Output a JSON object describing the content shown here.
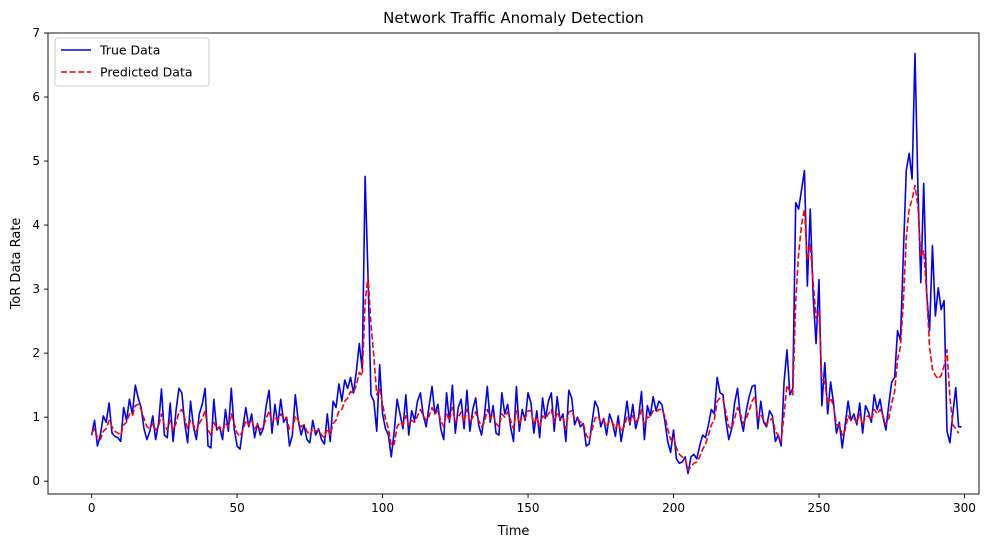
{
  "chart_data": {
    "type": "line",
    "title": "Network Traffic Anomaly Detection",
    "xlabel": "Time",
    "ylabel": "ToR Data Rate",
    "xlim": [
      -15,
      305
    ],
    "ylim": [
      -0.2,
      7
    ],
    "xticks": [
      0,
      50,
      100,
      150,
      200,
      250,
      300
    ],
    "yticks": [
      0,
      1,
      2,
      3,
      4,
      5,
      6,
      7
    ],
    "grid": false,
    "legend_position": "top-left",
    "series": [
      {
        "name": "True Data",
        "color": "#0000ff",
        "style": "solid",
        "values": [
          0.72,
          0.95,
          0.55,
          0.72,
          1.02,
          0.92,
          1.22,
          0.75,
          0.7,
          0.68,
          0.62,
          1.15,
          0.95,
          1.28,
          1.05,
          1.5,
          1.3,
          1.15,
          0.82,
          0.65,
          0.78,
          1.02,
          0.65,
          0.9,
          1.44,
          0.72,
          0.68,
          1.22,
          0.62,
          1.1,
          1.45,
          1.38,
          0.9,
          0.6,
          1.25,
          0.85,
          0.65,
          1.05,
          1.2,
          1.45,
          0.55,
          0.52,
          1.28,
          0.8,
          0.85,
          0.65,
          1.12,
          0.78,
          1.45,
          0.82,
          0.55,
          0.5,
          0.85,
          1.15,
          0.85,
          1.05,
          0.68,
          0.9,
          0.72,
          0.82,
          1.18,
          1.42,
          0.75,
          1.2,
          0.88,
          1.28,
          0.92,
          1.0,
          0.55,
          0.72,
          1.35,
          0.95,
          0.72,
          0.88,
          0.65,
          0.6,
          0.95,
          0.72,
          0.82,
          0.65,
          0.58,
          1.05,
          0.62,
          1.25,
          1.15,
          1.52,
          1.25,
          1.58,
          1.45,
          1.62,
          1.38,
          1.72,
          2.15,
          1.75,
          4.76,
          3.2,
          1.35,
          1.25,
          0.78,
          1.82,
          1.05,
          0.82,
          0.72,
          0.38,
          0.78,
          1.28,
          1.05,
          0.82,
          1.35,
          0.72,
          1.1,
          0.95,
          1.25,
          1.38,
          1.02,
          0.85,
          1.18,
          1.48,
          1.05,
          1.2,
          0.82,
          0.65,
          1.38,
          0.92,
          1.5,
          0.75,
          1.15,
          1.28,
          0.82,
          1.42,
          0.78,
          1.12,
          1.3,
          0.88,
          0.72,
          1.02,
          1.48,
          0.92,
          1.18,
          0.75,
          0.72,
          1.38,
          1.05,
          1.2,
          0.85,
          0.62,
          1.48,
          0.78,
          1.12,
          0.95,
          1.38,
          1.22,
          0.75,
          1.1,
          0.68,
          1.3,
          0.98,
          1.25,
          1.38,
          0.78,
          1.32,
          0.95,
          1.05,
          0.62,
          1.42,
          1.3,
          0.88,
          1.0,
          0.85,
          0.9,
          0.55,
          0.58,
          0.92,
          1.25,
          1.15,
          0.85,
          0.98,
          0.72,
          1.05,
          0.92,
          0.7,
          1.02,
          0.62,
          0.9,
          1.25,
          0.88,
          1.2,
          0.82,
          1.0,
          1.4,
          0.65,
          1.18,
          1.02,
          1.32,
          1.1,
          1.25,
          1.2,
          0.95,
          0.62,
          0.45,
          0.8,
          0.35,
          0.28,
          0.3,
          0.38,
          0.12,
          0.38,
          0.42,
          0.35,
          0.55,
          0.72,
          0.68,
          0.88,
          1.12,
          1.05,
          1.62,
          1.38,
          1.35,
          0.95,
          0.65,
          0.82,
          1.22,
          1.45,
          1.0,
          0.78,
          1.1,
          1.32,
          1.48,
          1.5,
          0.82,
          1.25,
          0.92,
          0.85,
          1.1,
          1.02,
          0.62,
          0.72,
          0.55,
          1.55,
          2.05,
          1.35,
          1.45,
          4.35,
          4.25,
          4.55,
          4.85,
          3.05,
          4.25,
          2.88,
          2.15,
          3.15,
          1.18,
          1.85,
          1.05,
          1.55,
          1.22,
          0.75,
          0.92,
          0.52,
          0.88,
          1.25,
          0.95,
          1.05,
          0.88,
          1.22,
          0.75,
          1.18,
          1.08,
          0.92,
          1.35,
          1.12,
          1.28,
          1.0,
          0.8,
          1.2,
          1.55,
          1.62,
          2.35,
          2.2,
          3.55,
          4.85,
          5.12,
          4.72,
          6.68,
          4.6,
          3.1,
          4.65,
          2.95,
          2.35,
          3.68,
          2.58,
          3.02,
          2.68,
          2.82,
          0.78,
          0.6,
          1.05,
          1.46,
          0.85,
          0.85
        ]
      },
      {
        "name": "Predicted Data",
        "color": "#ff0000",
        "style": "dashed",
        "values": [
          0.75,
          0.82,
          0.68,
          0.65,
          0.78,
          0.82,
          0.95,
          0.85,
          0.78,
          0.75,
          0.72,
          0.88,
          0.92,
          1.05,
          1.02,
          1.18,
          1.2,
          1.12,
          0.98,
          0.85,
          0.82,
          0.9,
          0.8,
          0.85,
          1.05,
          0.88,
          0.8,
          0.95,
          0.8,
          0.9,
          1.08,
          1.12,
          0.98,
          0.82,
          0.95,
          0.88,
          0.78,
          0.9,
          0.98,
          1.1,
          0.8,
          0.72,
          0.92,
          0.82,
          0.85,
          0.78,
          0.9,
          0.85,
          1.05,
          0.9,
          0.75,
          0.7,
          0.8,
          0.95,
          0.88,
          0.95,
          0.82,
          0.88,
          0.8,
          0.85,
          0.98,
          1.1,
          0.92,
          1.0,
          0.95,
          1.05,
          0.98,
          1.0,
          0.8,
          0.8,
          1.02,
          0.95,
          0.85,
          0.88,
          0.78,
          0.72,
          0.82,
          0.78,
          0.8,
          0.72,
          0.68,
          0.82,
          0.72,
          0.9,
          0.95,
          1.1,
          1.12,
          1.25,
          1.3,
          1.4,
          1.38,
          1.5,
          1.7,
          1.65,
          2.8,
          3.2,
          2.45,
          1.95,
          1.35,
          1.45,
          1.2,
          0.98,
          0.82,
          0.55,
          0.58,
          0.85,
          0.92,
          0.88,
          1.02,
          0.88,
          0.95,
          0.92,
          1.02,
          1.12,
          1.02,
          0.95,
          1.02,
          1.15,
          1.05,
          1.1,
          0.95,
          0.85,
          1.05,
          0.95,
          1.15,
          0.92,
          1.0,
          1.08,
          0.92,
          1.12,
          0.92,
          1.0,
          1.08,
          0.95,
          0.85,
          0.92,
          1.12,
          0.98,
          1.05,
          0.9,
          0.85,
          1.05,
          1.0,
          1.08,
          0.95,
          0.82,
          1.1,
          0.9,
          1.0,
          0.98,
          1.1,
          1.1,
          0.9,
          1.0,
          0.85,
          1.02,
          0.98,
          1.05,
          1.12,
          0.92,
          1.08,
          0.98,
          1.0,
          0.82,
          1.08,
          1.1,
          0.98,
          0.98,
          0.92,
          0.9,
          0.72,
          0.65,
          0.8,
          0.98,
          1.02,
          0.92,
          0.95,
          0.85,
          0.95,
          0.92,
          0.82,
          0.92,
          0.78,
          0.85,
          1.0,
          0.92,
          1.02,
          0.92,
          0.98,
          1.12,
          0.88,
          1.0,
          1.0,
          1.1,
          1.08,
          1.12,
          1.12,
          1.02,
          0.82,
          0.65,
          0.7,
          0.52,
          0.42,
          0.38,
          0.35,
          0.18,
          0.22,
          0.28,
          0.3,
          0.38,
          0.5,
          0.58,
          0.72,
          0.88,
          0.95,
          1.25,
          1.3,
          1.28,
          1.08,
          0.85,
          0.82,
          0.98,
          1.15,
          1.05,
          0.9,
          0.98,
          1.1,
          1.25,
          1.32,
          0.98,
          1.05,
          0.95,
          0.88,
          0.95,
          0.98,
          0.78,
          0.72,
          0.62,
          1.05,
          1.5,
          1.4,
          1.35,
          2.8,
          3.55,
          4.0,
          4.25,
          3.45,
          3.7,
          3.1,
          2.55,
          2.65,
          1.6,
          1.55,
          1.2,
          1.3,
          1.18,
          0.88,
          0.88,
          0.72,
          0.8,
          1.02,
          0.95,
          0.98,
          0.92,
          1.05,
          0.88,
          1.0,
          1.02,
          0.95,
          1.12,
          1.05,
          1.12,
          1.02,
          0.88,
          0.98,
          1.22,
          1.4,
          1.9,
          2.1,
          2.8,
          3.8,
          4.25,
          4.4,
          4.62,
          4.3,
          3.5,
          3.6,
          2.95,
          2.1,
          1.75,
          1.65,
          1.6,
          1.65,
          1.8,
          2.05,
          1.3,
          0.88,
          0.82,
          0.75
        ]
      }
    ]
  }
}
